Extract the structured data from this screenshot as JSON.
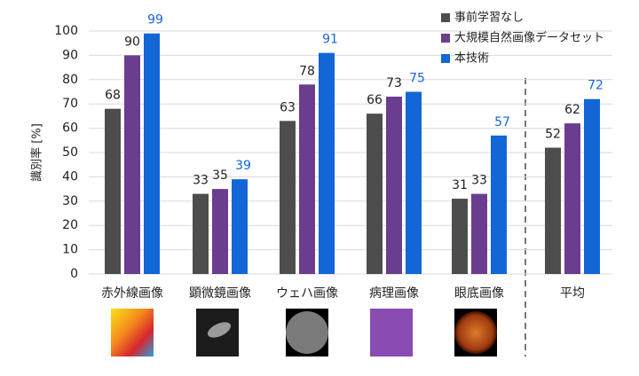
{
  "chart_data": {
    "type": "bar",
    "y_label": "識別率 [%]",
    "categories": [
      "赤外線画像",
      "顕微鏡画像",
      "ウェハ画像",
      "病理画像",
      "眼底画像",
      "平均"
    ],
    "series": [
      {
        "name": "事前学習なし",
        "color": "#4d4d4d",
        "label_color": "#222222",
        "values": [
          68,
          33,
          63,
          66,
          31,
          52
        ]
      },
      {
        "name": "大規模自然画像データセット",
        "color": "#6b3d8e",
        "label_color": "#222222",
        "values": [
          90,
          35,
          78,
          73,
          33,
          62
        ]
      },
      {
        "name": "本技術",
        "color": "#1366d6",
        "label_color": "#1366d6",
        "values": [
          99,
          39,
          91,
          75,
          57,
          72
        ]
      }
    ],
    "ylim": [
      0,
      100
    ],
    "yticks": [
      0,
      10,
      20,
      30,
      40,
      50,
      60,
      70,
      80,
      90,
      100
    ],
    "grid": true
  }
}
